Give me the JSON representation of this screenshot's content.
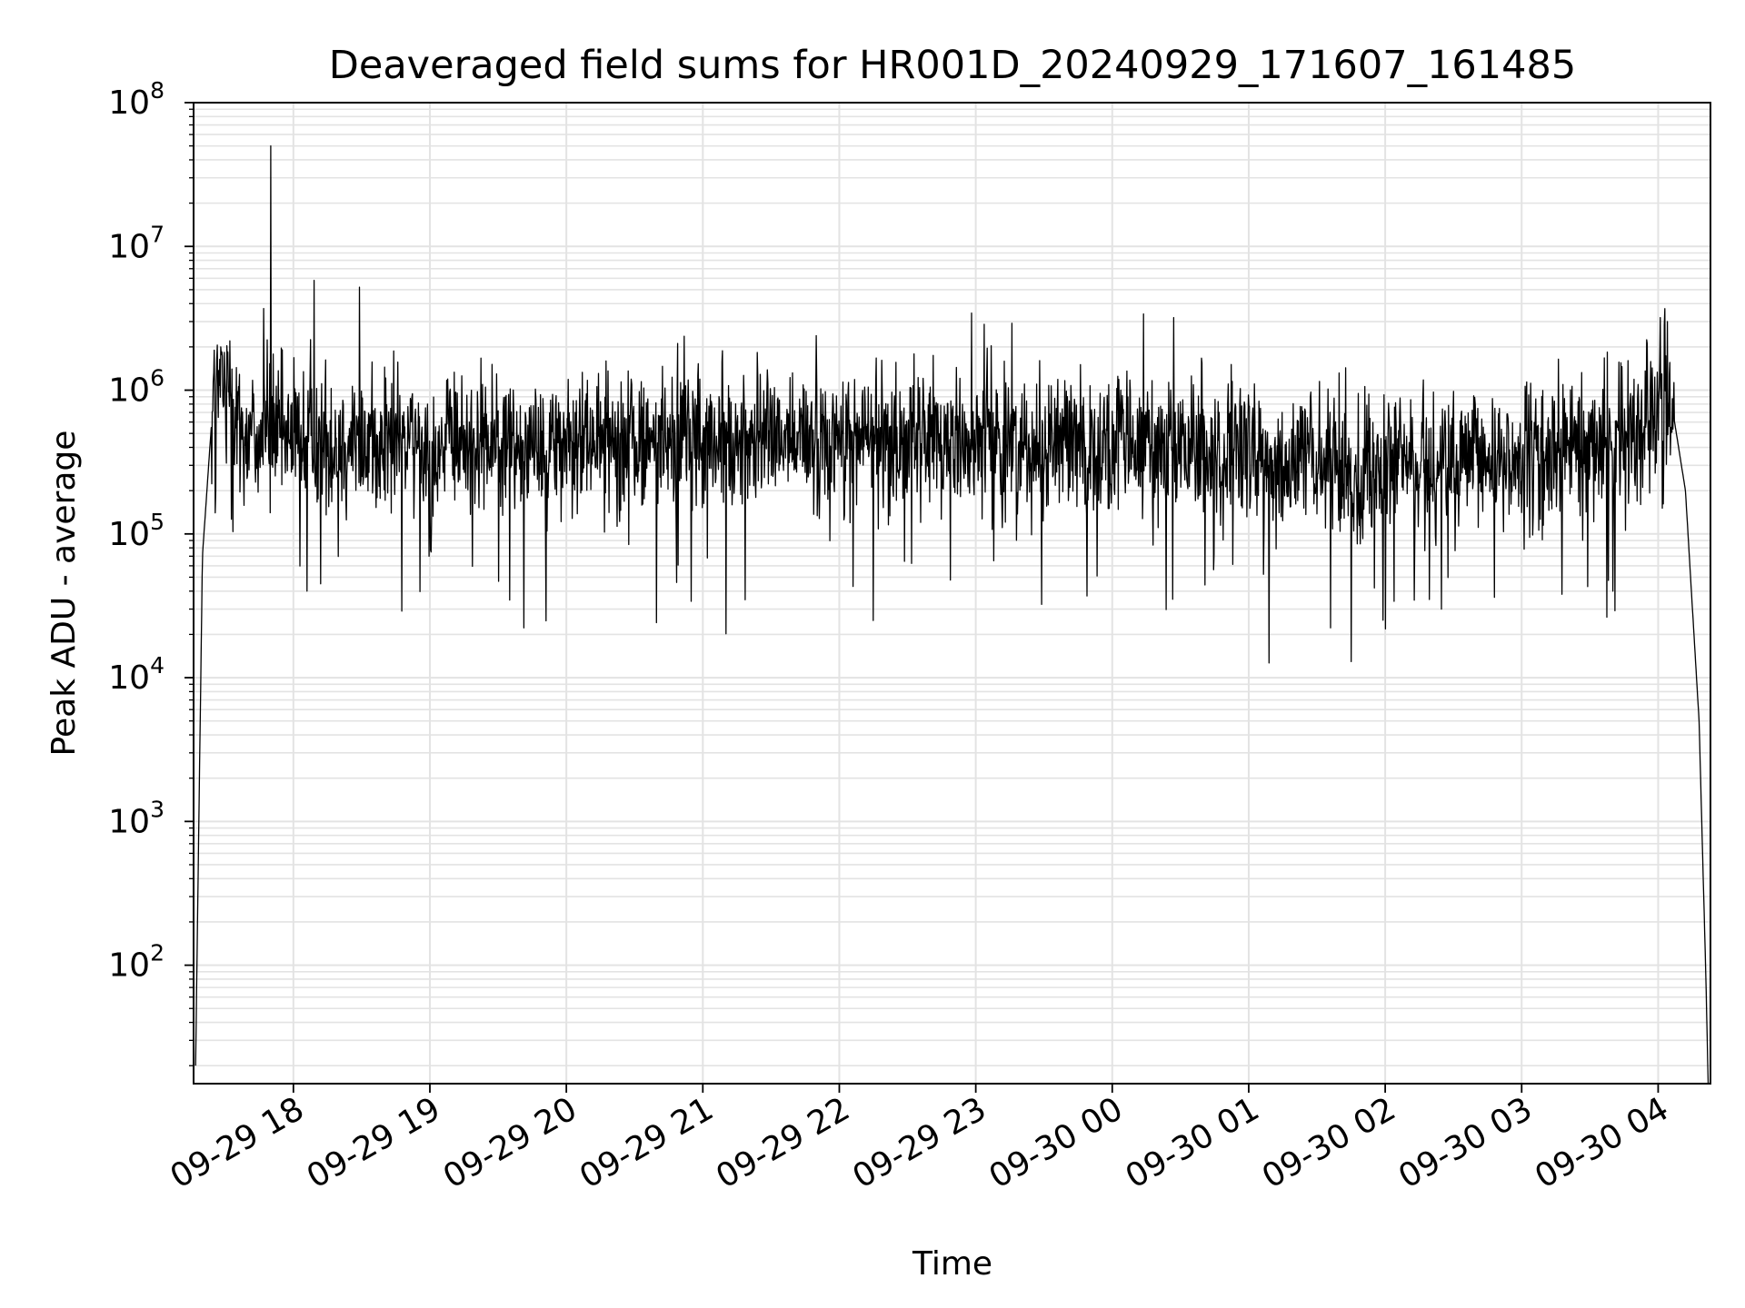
{
  "chart_data": {
    "type": "line",
    "title": "Deaveraged field sums for HR001D_20240929_171607_161485",
    "xlabel": "Time",
    "ylabel": "Peak ADU - average",
    "yscale": "log",
    "ylim": [
      15,
      100000000
    ],
    "xlim": [
      "2024-09-29 17:16:07",
      "2024-09-30 04:23:00"
    ],
    "grid": true,
    "legend": "none",
    "line_color": "#000000",
    "grid_color": "#e3e3e3",
    "y_ticks": [
      {
        "base": "10",
        "exp": "2",
        "value": 100
      },
      {
        "base": "10",
        "exp": "3",
        "value": 1000
      },
      {
        "base": "10",
        "exp": "4",
        "value": 10000
      },
      {
        "base": "10",
        "exp": "5",
        "value": 100000
      },
      {
        "base": "10",
        "exp": "6",
        "value": 1000000
      },
      {
        "base": "10",
        "exp": "7",
        "value": 10000000
      },
      {
        "base": "10",
        "exp": "8",
        "value": 100000000
      }
    ],
    "x_ticks": [
      {
        "label": "09-29 18",
        "time": "2024-09-29 18:00"
      },
      {
        "label": "09-29 19",
        "time": "2024-09-29 19:00"
      },
      {
        "label": "09-29 20",
        "time": "2024-09-29 20:00"
      },
      {
        "label": "09-29 21",
        "time": "2024-09-29 21:00"
      },
      {
        "label": "09-29 22",
        "time": "2024-09-29 22:00"
      },
      {
        "label": "09-29 23",
        "time": "2024-09-29 23:00"
      },
      {
        "label": "09-30 00",
        "time": "2024-09-30 00:00"
      },
      {
        "label": "09-30 01",
        "time": "2024-09-30 01:00"
      },
      {
        "label": "09-30 02",
        "time": "2024-09-30 02:00"
      },
      {
        "label": "09-30 03",
        "time": "2024-09-30 03:00"
      },
      {
        "label": "09-30 04",
        "time": "2024-09-30 04:00"
      }
    ],
    "series": [
      {
        "baseline_trend": [
          {
            "time": "2024-09-29 17:17",
            "value": 20
          },
          {
            "time": "2024-09-29 17:20",
            "value": 70000
          },
          {
            "time": "2024-09-29 17:25",
            "value": 1000000
          },
          {
            "time": "2024-09-29 17:30",
            "value": 1000000
          },
          {
            "time": "2024-09-29 17:38",
            "value": 500000
          },
          {
            "time": "2024-09-29 18:00",
            "value": 450000
          },
          {
            "time": "2024-09-29 19:00",
            "value": 420000
          },
          {
            "time": "2024-09-29 20:00",
            "value": 450000
          },
          {
            "time": "2024-09-29 21:00",
            "value": 460000
          },
          {
            "time": "2024-09-29 22:00",
            "value": 460000
          },
          {
            "time": "2024-09-29 23:00",
            "value": 470000
          },
          {
            "time": "2024-09-30 00:00",
            "value": 420000
          },
          {
            "time": "2024-09-30 01:00",
            "value": 330000
          },
          {
            "time": "2024-09-30 02:00",
            "value": 280000
          },
          {
            "time": "2024-09-30 03:00",
            "value": 330000
          },
          {
            "time": "2024-09-30 03:45",
            "value": 450000
          },
          {
            "time": "2024-09-30 03:55",
            "value": 700000
          },
          {
            "time": "2024-09-30 04:02",
            "value": 1100000
          },
          {
            "time": "2024-09-30 04:05",
            "value": 1000000
          },
          {
            "time": "2024-09-30 04:12",
            "value": 200000
          },
          {
            "time": "2024-09-30 04:18",
            "value": 5000
          },
          {
            "time": "2024-09-30 04:21",
            "value": 80
          },
          {
            "time": "2024-09-30 04:22",
            "value": 15
          }
        ],
        "peaks": [
          {
            "time": "2024-09-29 17:50",
            "value": 50000000
          },
          {
            "time": "2024-09-29 17:47",
            "value": 3700000
          },
          {
            "time": "2024-09-29 18:09",
            "value": 5800000
          },
          {
            "time": "2024-09-29 18:12",
            "value": 4300000
          },
          {
            "time": "2024-09-29 18:29",
            "value": 5200000
          },
          {
            "time": "2024-09-29 17:28",
            "value": 2000000
          },
          {
            "time": "2024-09-29 17:32",
            "value": 2200000
          },
          {
            "time": "2024-09-30 00:27",
            "value": 3200000
          },
          {
            "time": "2024-09-30 04:01",
            "value": 3200000
          },
          {
            "time": "2024-09-30 04:04",
            "value": 3000000
          }
        ],
        "troughs": [
          {
            "time": "2024-09-29 18:06",
            "value": 40000
          },
          {
            "time": "2024-09-29 18:12",
            "value": 45000
          },
          {
            "time": "2024-09-29 20:55",
            "value": 34000
          },
          {
            "time": "2024-09-29 22:15",
            "value": 25000
          },
          {
            "time": "2024-09-29 23:49",
            "value": 37000
          },
          {
            "time": "2024-09-30 02:04",
            "value": 34000
          },
          {
            "time": "2024-09-30 03:40",
            "value": 40000
          }
        ]
      }
    ]
  }
}
